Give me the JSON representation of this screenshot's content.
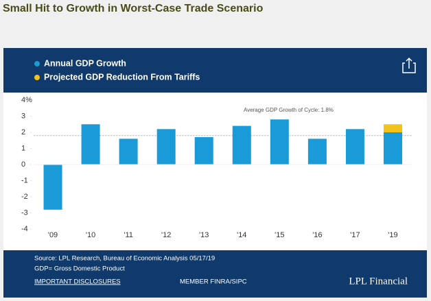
{
  "title": "Small Hit to Growth in Worst-Case Trade Scenario",
  "chart_data": {
    "type": "bar",
    "categories": [
      "'09",
      "'10",
      "'11",
      "'12",
      "'13",
      "'14",
      "'15",
      "'16",
      "'17",
      "'19"
    ],
    "series": [
      {
        "name": "Annual GDP Growth",
        "color": "#1a9ad6",
        "values": [
          -2.8,
          2.5,
          1.6,
          2.2,
          1.7,
          2.4,
          2.8,
          1.6,
          2.2,
          2.0
        ]
      },
      {
        "name": "Projected GDP Reduction From Tariffs",
        "color": "#f2c318",
        "values": [
          null,
          null,
          null,
          null,
          null,
          null,
          null,
          null,
          null,
          0.5
        ]
      }
    ],
    "stacked": true,
    "ylim": [
      -4,
      4
    ],
    "yticks": [
      -4,
      -3,
      -2,
      -1,
      0,
      1,
      2,
      3,
      {
        "value": 4,
        "label": "4%"
      }
    ],
    "grid": false,
    "average": 1.8,
    "annotation": "Average GDP Growth of Cycle: 1.8%"
  },
  "footer": {
    "source": "Source: LPL Research, Bureau of Economic Analysis 05/17/19",
    "note": "GDP= Gross Domestic Product",
    "disclosures": "IMPORTANT DISCLOSURES",
    "member": "MEMBER FINRA/SIPC",
    "brand": "LPL Financial"
  }
}
